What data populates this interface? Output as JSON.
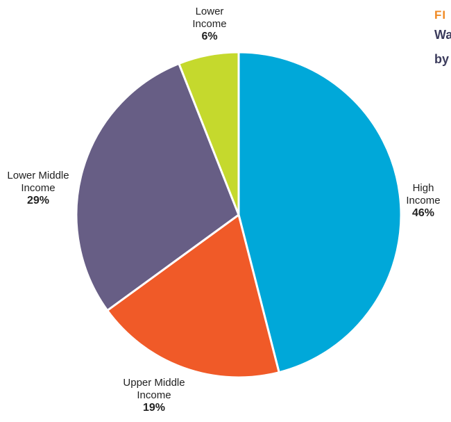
{
  "header": {
    "kicker": "FI",
    "title_line1": "Wa",
    "title_line2": "by"
  },
  "chart_data": {
    "type": "pie",
    "start": "top",
    "direction": "clockwise",
    "slices": [
      {
        "label": "High\nIncome",
        "value": 46,
        "pct_label": "46%",
        "color": "#00a8d9"
      },
      {
        "label": "Upper Middle\nIncome",
        "value": 19,
        "pct_label": "19%",
        "color": "#f05a28"
      },
      {
        "label": "Lower Middle\nIncome",
        "value": 29,
        "pct_label": "29%",
        "color": "#675e85"
      },
      {
        "label": "Lower\nIncome",
        "value": 6,
        "pct_label": "6%",
        "color": "#c5d92d"
      }
    ]
  }
}
